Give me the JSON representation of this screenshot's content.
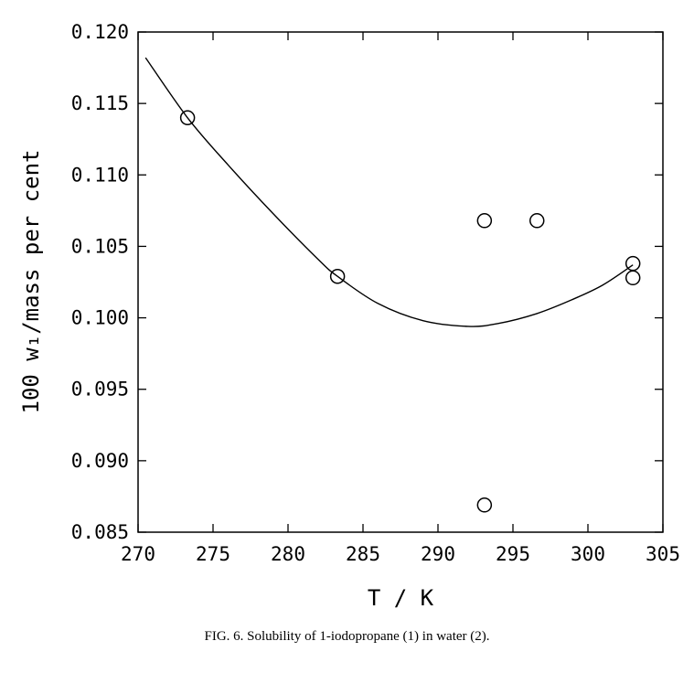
{
  "caption": "FIG. 6. Solubility of 1-iodopropane (1) in water (2).",
  "chart_data": {
    "type": "scatter",
    "title": "",
    "xlabel": "T / K",
    "ylabel": "100 w₁/mass per cent",
    "xlim": [
      270,
      305
    ],
    "ylim": [
      0.085,
      0.12
    ],
    "xticks": [
      "270",
      "275",
      "280",
      "285",
      "290",
      "295",
      "300",
      "305"
    ],
    "yticks": [
      "0.085",
      "0.090",
      "0.095",
      "0.100",
      "0.105",
      "0.110",
      "0.115",
      "0.120"
    ],
    "grid": false,
    "legend": "none",
    "series": [
      {
        "kind": "points",
        "marker": "open-circle",
        "x": [
          273.3,
          283.3,
          293.1,
          296.6,
          303.0,
          303.0,
          293.1
        ],
        "y": [
          0.114,
          0.1029,
          0.1068,
          0.1068,
          0.1038,
          0.1028,
          0.0869
        ]
      },
      {
        "kind": "fit-line",
        "x": [
          270.5,
          273.3,
          276.0,
          279.0,
          282.0,
          283.3,
          286.0,
          289.0,
          292.0,
          294.0,
          296.6,
          299.0,
          301.0,
          303.0
        ],
        "y": [
          0.1182,
          0.114,
          0.1107,
          0.1073,
          0.1041,
          0.1029,
          0.101,
          0.0998,
          0.0994,
          0.0996,
          0.1003,
          0.1013,
          0.1023,
          0.1037
        ]
      }
    ]
  }
}
